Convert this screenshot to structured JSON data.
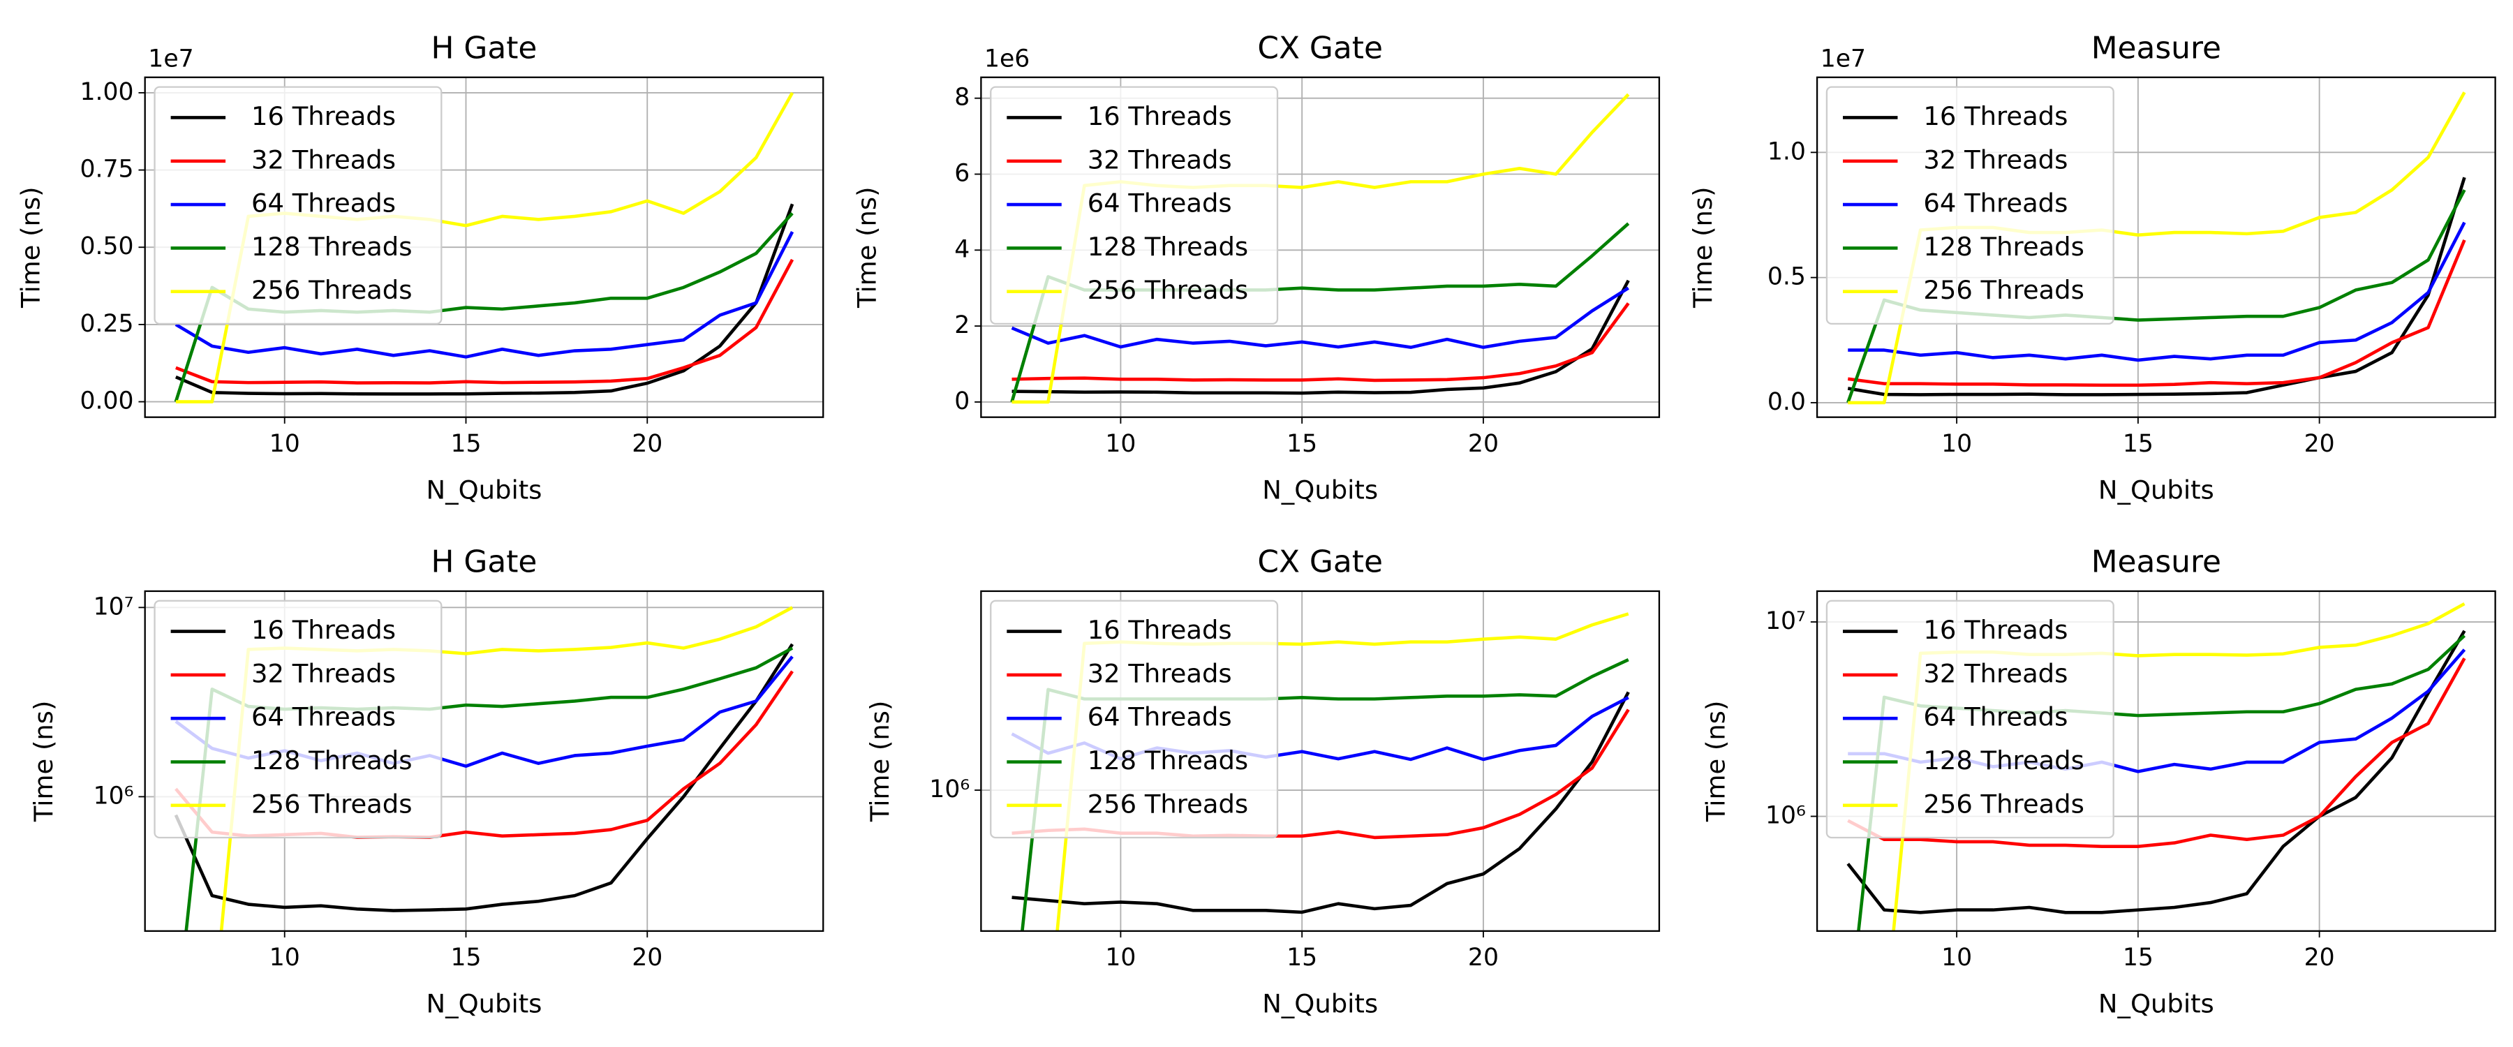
{
  "chart_data": [
    {
      "type": "line",
      "title": "H Gate",
      "xlabel": "N_Qubits",
      "ylabel": "Time (ns)",
      "yscale": "linear",
      "offset_text": "1e7",
      "grid": true,
      "legend": "upper left",
      "x": [
        7,
        8,
        9,
        10,
        11,
        12,
        13,
        14,
        15,
        16,
        17,
        18,
        19,
        20,
        21,
        22,
        23,
        24
      ],
      "xlim": [
        6.15,
        24.85
      ],
      "xticks": [
        10,
        15,
        20
      ],
      "ylim": [
        -500000,
        10500000
      ],
      "yticks": [
        {
          "value": 0,
          "label": "0.00"
        },
        {
          "value": 2500000,
          "label": "0.25"
        },
        {
          "value": 5000000,
          "label": "0.50"
        },
        {
          "value": 7500000,
          "label": "0.75"
        },
        {
          "value": 10000000,
          "label": "1.00"
        }
      ],
      "series": [
        {
          "name": "16 Threads",
          "color": "#000000",
          "values": [
            800000,
            300000,
            270000,
            260000,
            265000,
            255000,
            250000,
            252000,
            255000,
            270000,
            280000,
            300000,
            350000,
            600000,
            1000000,
            1800000,
            3200000,
            6400000
          ]
        },
        {
          "name": "32 Threads",
          "color": "#ff0000",
          "values": [
            1100000,
            650000,
            620000,
            630000,
            640000,
            610000,
            615000,
            610000,
            650000,
            620000,
            630000,
            640000,
            670000,
            750000,
            1100000,
            1500000,
            2400000,
            4600000
          ]
        },
        {
          "name": "64 Threads",
          "color": "#0000ff",
          "values": [
            2500000,
            1800000,
            1600000,
            1750000,
            1550000,
            1700000,
            1500000,
            1650000,
            1450000,
            1700000,
            1500000,
            1650000,
            1700000,
            1850000,
            2000000,
            2800000,
            3200000,
            5500000
          ]
        },
        {
          "name": "128 Threads",
          "color": "#008000",
          "values": [
            0,
            3700000,
            3000000,
            2900000,
            2950000,
            2900000,
            2950000,
            2900000,
            3050000,
            3000000,
            3100000,
            3200000,
            3350000,
            3350000,
            3700000,
            4200000,
            4800000,
            6100000
          ]
        },
        {
          "name": "256 Threads",
          "color": "#ffff00",
          "values": [
            0,
            0,
            6000000,
            6100000,
            6000000,
            5900000,
            6000000,
            5900000,
            5700000,
            6000000,
            5900000,
            6000000,
            6150000,
            6500000,
            6100000,
            6800000,
            7900000,
            10000000
          ]
        }
      ]
    },
    {
      "type": "line",
      "title": "CX Gate",
      "xlabel": "N_Qubits",
      "ylabel": "Time (ns)",
      "yscale": "linear",
      "offset_text": "1e6",
      "grid": true,
      "legend": "upper left",
      "x": [
        7,
        8,
        9,
        10,
        11,
        12,
        13,
        14,
        15,
        16,
        17,
        18,
        19,
        20,
        21,
        22,
        23,
        24
      ],
      "xlim": [
        6.15,
        24.85
      ],
      "xticks": [
        10,
        15,
        20
      ],
      "ylim": [
        -400000,
        8550000
      ],
      "yticks": [
        {
          "value": 0,
          "label": "0"
        },
        {
          "value": 2000000,
          "label": "2"
        },
        {
          "value": 4000000,
          "label": "4"
        },
        {
          "value": 6000000,
          "label": "6"
        },
        {
          "value": 8000000,
          "label": "8"
        }
      ],
      "series": [
        {
          "name": "16 Threads",
          "color": "#000000",
          "values": [
            280000,
            270000,
            260000,
            265000,
            260000,
            240000,
            240000,
            240000,
            235000,
            260000,
            245000,
            255000,
            330000,
            370000,
            500000,
            800000,
            1400000,
            3200000
          ]
        },
        {
          "name": "32 Threads",
          "color": "#ff0000",
          "values": [
            600000,
            620000,
            630000,
            600000,
            600000,
            580000,
            585000,
            580000,
            580000,
            610000,
            570000,
            580000,
            590000,
            640000,
            750000,
            950000,
            1300000,
            2600000
          ]
        },
        {
          "name": "64 Threads",
          "color": "#0000ff",
          "values": [
            1950000,
            1550000,
            1750000,
            1450000,
            1650000,
            1550000,
            1600000,
            1480000,
            1580000,
            1450000,
            1580000,
            1440000,
            1650000,
            1440000,
            1600000,
            1700000,
            2400000,
            3000000
          ]
        },
        {
          "name": "128 Threads",
          "color": "#008000",
          "values": [
            0,
            3300000,
            2950000,
            2950000,
            2950000,
            2950000,
            2950000,
            2950000,
            3000000,
            2950000,
            2950000,
            3000000,
            3050000,
            3050000,
            3100000,
            3050000,
            3850000,
            4700000
          ]
        },
        {
          "name": "256 Threads",
          "color": "#ffff00",
          "values": [
            0,
            0,
            5700000,
            5800000,
            5700000,
            5650000,
            5700000,
            5700000,
            5650000,
            5800000,
            5650000,
            5800000,
            5800000,
            6000000,
            6150000,
            6000000,
            7100000,
            8100000
          ]
        }
      ]
    },
    {
      "type": "line",
      "title": "Measure",
      "xlabel": "N_Qubits",
      "ylabel": "Time (ns)",
      "yscale": "linear",
      "offset_text": "1e7",
      "grid": true,
      "legend": "upper left",
      "x": [
        7,
        8,
        9,
        10,
        11,
        12,
        13,
        14,
        15,
        16,
        17,
        18,
        19,
        20,
        21,
        22,
        23,
        24
      ],
      "xlim": [
        6.15,
        24.85
      ],
      "xticks": [
        10,
        15,
        20
      ],
      "ylim": [
        -580000,
        13000000
      ],
      "yticks": [
        {
          "value": 0,
          "label": "0.0"
        },
        {
          "value": 5000000,
          "label": "0.5"
        },
        {
          "value": 10000000,
          "label": "1.0"
        }
      ],
      "series": [
        {
          "name": "16 Threads",
          "color": "#000000",
          "values": [
            570000,
            330000,
            320000,
            330000,
            330000,
            340000,
            320000,
            320000,
            330000,
            340000,
            360000,
            400000,
            700000,
            1000000,
            1250000,
            2000000,
            4300000,
            9000000
          ]
        },
        {
          "name": "32 Threads",
          "color": "#ff0000",
          "values": [
            950000,
            760000,
            760000,
            740000,
            740000,
            710000,
            710000,
            700000,
            700000,
            730000,
            800000,
            760000,
            800000,
            1000000,
            1600000,
            2400000,
            3000000,
            6500000
          ]
        },
        {
          "name": "64 Threads",
          "color": "#0000ff",
          "values": [
            2100000,
            2100000,
            1900000,
            2000000,
            1800000,
            1900000,
            1750000,
            1900000,
            1700000,
            1850000,
            1750000,
            1900000,
            1900000,
            2400000,
            2500000,
            3200000,
            4400000,
            7200000
          ]
        },
        {
          "name": "128 Threads",
          "color": "#008000",
          "values": [
            0,
            4100000,
            3700000,
            3600000,
            3500000,
            3400000,
            3500000,
            3400000,
            3300000,
            3350000,
            3400000,
            3450000,
            3450000,
            3800000,
            4500000,
            4800000,
            5700000,
            8500000
          ]
        },
        {
          "name": "256 Threads",
          "color": "#ffff00",
          "values": [
            0,
            0,
            6900000,
            7000000,
            7000000,
            6800000,
            6800000,
            6900000,
            6700000,
            6800000,
            6800000,
            6750000,
            6850000,
            7400000,
            7600000,
            8500000,
            9800000,
            12400000
          ]
        }
      ]
    },
    {
      "type": "line",
      "title": "H Gate",
      "xlabel": "N_Qubits",
      "ylabel": "Time (ns)",
      "yscale": "log",
      "grid": true,
      "legend": "upper left",
      "x": [
        7,
        8,
        9,
        10,
        11,
        12,
        13,
        14,
        15,
        16,
        17,
        18,
        19,
        20,
        21,
        22,
        23,
        24
      ],
      "xlim": [
        6.15,
        24.85
      ],
      "xticks": [
        10,
        15,
        20
      ],
      "ylim": [
        195000,
        12200000
      ],
      "yticks": [
        {
          "value": 1000000,
          "label": "10⁶"
        },
        {
          "value": 10000000,
          "label": "10⁷"
        }
      ],
      "series": [
        {
          "name": "16 Threads",
          "color": "#000000",
          "values": [
            800000,
            300000,
            270000,
            260000,
            265000,
            255000,
            250000,
            252000,
            255000,
            270000,
            280000,
            300000,
            350000,
            600000,
            1000000,
            1800000,
            3200000,
            6400000
          ]
        },
        {
          "name": "32 Threads",
          "color": "#ff0000",
          "values": [
            1100000,
            650000,
            620000,
            630000,
            640000,
            610000,
            615000,
            610000,
            650000,
            620000,
            630000,
            640000,
            670000,
            750000,
            1100000,
            1500000,
            2400000,
            4600000
          ]
        },
        {
          "name": "64 Threads",
          "color": "#0000ff",
          "values": [
            2500000,
            1800000,
            1600000,
            1750000,
            1550000,
            1700000,
            1500000,
            1650000,
            1450000,
            1700000,
            1500000,
            1650000,
            1700000,
            1850000,
            2000000,
            2800000,
            3200000,
            5500000
          ]
        },
        {
          "name": "128 Threads",
          "color": "#008000",
          "values": [
            0,
            3700000,
            3000000,
            2900000,
            2950000,
            2900000,
            2950000,
            2900000,
            3050000,
            3000000,
            3100000,
            3200000,
            3350000,
            3350000,
            3700000,
            4200000,
            4800000,
            6100000
          ]
        },
        {
          "name": "256 Threads",
          "color": "#ffff00",
          "values": [
            0,
            0,
            6000000,
            6100000,
            6000000,
            5900000,
            6000000,
            5900000,
            5700000,
            6000000,
            5900000,
            6000000,
            6150000,
            6500000,
            6100000,
            6800000,
            7900000,
            10000000
          ]
        }
      ]
    },
    {
      "type": "line",
      "title": "CX Gate",
      "xlabel": "N_Qubits",
      "ylabel": "Time (ns)",
      "yscale": "log",
      "grid": true,
      "legend": "upper left",
      "x": [
        7,
        8,
        9,
        10,
        11,
        12,
        13,
        14,
        15,
        16,
        17,
        18,
        19,
        20,
        21,
        22,
        23,
        24
      ],
      "xlim": [
        6.15,
        24.85
      ],
      "xticks": [
        10,
        15,
        20
      ],
      "ylim": [
        188000,
        10600000
      ],
      "yticks": [
        {
          "value": 1000000,
          "label": "10⁶"
        }
      ],
      "series": [
        {
          "name": "16 Threads",
          "color": "#000000",
          "values": [
            280000,
            270000,
            260000,
            265000,
            260000,
            240000,
            240000,
            240000,
            235000,
            260000,
            245000,
            255000,
            330000,
            370000,
            500000,
            800000,
            1400000,
            3200000
          ]
        },
        {
          "name": "32 Threads",
          "color": "#ff0000",
          "values": [
            600000,
            620000,
            630000,
            600000,
            600000,
            580000,
            585000,
            580000,
            580000,
            610000,
            570000,
            580000,
            590000,
            640000,
            750000,
            950000,
            1300000,
            2600000
          ]
        },
        {
          "name": "64 Threads",
          "color": "#0000ff",
          "values": [
            1950000,
            1550000,
            1750000,
            1450000,
            1650000,
            1550000,
            1600000,
            1480000,
            1580000,
            1450000,
            1580000,
            1440000,
            1650000,
            1440000,
            1600000,
            1700000,
            2400000,
            3000000
          ]
        },
        {
          "name": "128 Threads",
          "color": "#008000",
          "values": [
            0,
            3300000,
            2950000,
            2950000,
            2950000,
            2950000,
            2950000,
            2950000,
            3000000,
            2950000,
            2950000,
            3000000,
            3050000,
            3050000,
            3100000,
            3050000,
            3850000,
            4700000
          ]
        },
        {
          "name": "256 Threads",
          "color": "#ffff00",
          "values": [
            0,
            0,
            5700000,
            5800000,
            5700000,
            5650000,
            5700000,
            5700000,
            5650000,
            5800000,
            5650000,
            5800000,
            5800000,
            6000000,
            6150000,
            6000000,
            7100000,
            8100000
          ]
        }
      ]
    },
    {
      "type": "line",
      "title": "Measure",
      "xlabel": "N_Qubits",
      "ylabel": "Time (ns)",
      "yscale": "log",
      "grid": true,
      "legend": "upper left",
      "x": [
        7,
        8,
        9,
        10,
        11,
        12,
        13,
        14,
        15,
        16,
        17,
        18,
        19,
        20,
        21,
        22,
        23,
        24
      ],
      "xlim": [
        6.15,
        24.85
      ],
      "xticks": [
        10,
        15,
        20
      ],
      "ylim": [
        257000,
        14400000
      ],
      "yticks": [
        {
          "value": 1000000,
          "label": "10⁶"
        },
        {
          "value": 10000000,
          "label": "10⁷"
        }
      ],
      "series": [
        {
          "name": "16 Threads",
          "color": "#000000",
          "values": [
            570000,
            330000,
            320000,
            330000,
            330000,
            340000,
            320000,
            320000,
            330000,
            340000,
            360000,
            400000,
            700000,
            1000000,
            1250000,
            2000000,
            4300000,
            9000000
          ]
        },
        {
          "name": "32 Threads",
          "color": "#ff0000",
          "values": [
            950000,
            760000,
            760000,
            740000,
            740000,
            710000,
            710000,
            700000,
            700000,
            730000,
            800000,
            760000,
            800000,
            1000000,
            1600000,
            2400000,
            3000000,
            6500000
          ]
        },
        {
          "name": "64 Threads",
          "color": "#0000ff",
          "values": [
            2100000,
            2100000,
            1900000,
            2000000,
            1800000,
            1900000,
            1750000,
            1900000,
            1700000,
            1850000,
            1750000,
            1900000,
            1900000,
            2400000,
            2500000,
            3200000,
            4400000,
            7200000
          ]
        },
        {
          "name": "128 Threads",
          "color": "#008000",
          "values": [
            0,
            4100000,
            3700000,
            3600000,
            3500000,
            3400000,
            3500000,
            3400000,
            3300000,
            3350000,
            3400000,
            3450000,
            3450000,
            3800000,
            4500000,
            4800000,
            5700000,
            8500000
          ]
        },
        {
          "name": "256 Threads",
          "color": "#ffff00",
          "values": [
            0,
            0,
            6900000,
            7000000,
            7000000,
            6800000,
            6800000,
            6900000,
            6700000,
            6800000,
            6800000,
            6750000,
            6850000,
            7400000,
            7600000,
            8500000,
            9800000,
            12400000
          ]
        }
      ]
    }
  ]
}
